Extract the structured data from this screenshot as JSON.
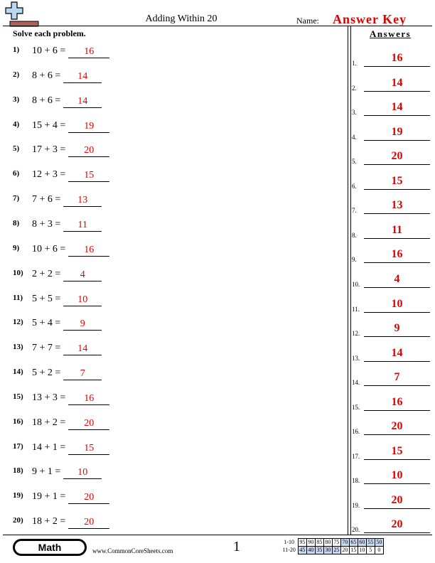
{
  "header": {
    "title": "Adding Within 20",
    "name_label": "Name:",
    "answer_key_label": "Answer Key"
  },
  "instructions": "Solve each problem.",
  "problems": [
    {
      "num": "1)",
      "expr": "10 + 6 =",
      "answer": "16"
    },
    {
      "num": "2)",
      "expr": "8 + 6 =",
      "answer": "14"
    },
    {
      "num": "3)",
      "expr": "8 + 6 =",
      "answer": "14"
    },
    {
      "num": "4)",
      "expr": "15 + 4 =",
      "answer": "19"
    },
    {
      "num": "5)",
      "expr": "17 + 3 =",
      "answer": "20"
    },
    {
      "num": "6)",
      "expr": "12 + 3 =",
      "answer": "15"
    },
    {
      "num": "7)",
      "expr": "7 + 6 =",
      "answer": "13"
    },
    {
      "num": "8)",
      "expr": "8 + 3 =",
      "answer": "11"
    },
    {
      "num": "9)",
      "expr": "10 + 6 =",
      "answer": "16"
    },
    {
      "num": "10)",
      "expr": "2 + 2 =",
      "answer": "4"
    },
    {
      "num": "11)",
      "expr": "5 + 5 =",
      "answer": "10"
    },
    {
      "num": "12)",
      "expr": "5 + 4 =",
      "answer": "9"
    },
    {
      "num": "13)",
      "expr": "7 + 7 =",
      "answer": "14"
    },
    {
      "num": "14)",
      "expr": "5 + 2 =",
      "answer": "7"
    },
    {
      "num": "15)",
      "expr": "13 + 3 =",
      "answer": "16"
    },
    {
      "num": "16)",
      "expr": "18 + 2 =",
      "answer": "20"
    },
    {
      "num": "17)",
      "expr": "14 + 1 =",
      "answer": "15"
    },
    {
      "num": "18)",
      "expr": "9 + 1 =",
      "answer": "10"
    },
    {
      "num": "19)",
      "expr": "19 + 1 =",
      "answer": "20"
    },
    {
      "num": "20)",
      "expr": "18 + 2 =",
      "answer": "20"
    }
  ],
  "answers": {
    "heading": "Answers",
    "items": [
      {
        "num": "1.",
        "value": "16"
      },
      {
        "num": "2.",
        "value": "14"
      },
      {
        "num": "3.",
        "value": "14"
      },
      {
        "num": "4.",
        "value": "19"
      },
      {
        "num": "5.",
        "value": "20"
      },
      {
        "num": "6.",
        "value": "15"
      },
      {
        "num": "7.",
        "value": "13"
      },
      {
        "num": "8.",
        "value": "11"
      },
      {
        "num": "9.",
        "value": "16"
      },
      {
        "num": "10.",
        "value": "4"
      },
      {
        "num": "11.",
        "value": "10"
      },
      {
        "num": "12.",
        "value": "9"
      },
      {
        "num": "13.",
        "value": "14"
      },
      {
        "num": "14.",
        "value": "7"
      },
      {
        "num": "15.",
        "value": "16"
      },
      {
        "num": "16.",
        "value": "20"
      },
      {
        "num": "17.",
        "value": "15"
      },
      {
        "num": "18.",
        "value": "10"
      },
      {
        "num": "19.",
        "value": "20"
      },
      {
        "num": "20.",
        "value": "20"
      }
    ]
  },
  "footer": {
    "badge": "Math",
    "url": "www.CommonCoreSheets.com",
    "page_number": "1",
    "score_table": {
      "rows": [
        {
          "label": "1-10",
          "values": [
            "95",
            "90",
            "85",
            "80",
            "75",
            "70",
            "65",
            "60",
            "55",
            "50"
          ]
        },
        {
          "label": "11-20",
          "values": [
            "45",
            "40",
            "35",
            "30",
            "25",
            "20",
            "15",
            "10",
            "5",
            "0"
          ]
        }
      ]
    }
  },
  "colors": {
    "answer_red": "#e00000",
    "logo_plus": "#b8d9ef",
    "logo_eraser": "#b35f55",
    "score_highlight": "#c9daf0"
  },
  "icons": {
    "logo": "plus-eraser-icon"
  }
}
